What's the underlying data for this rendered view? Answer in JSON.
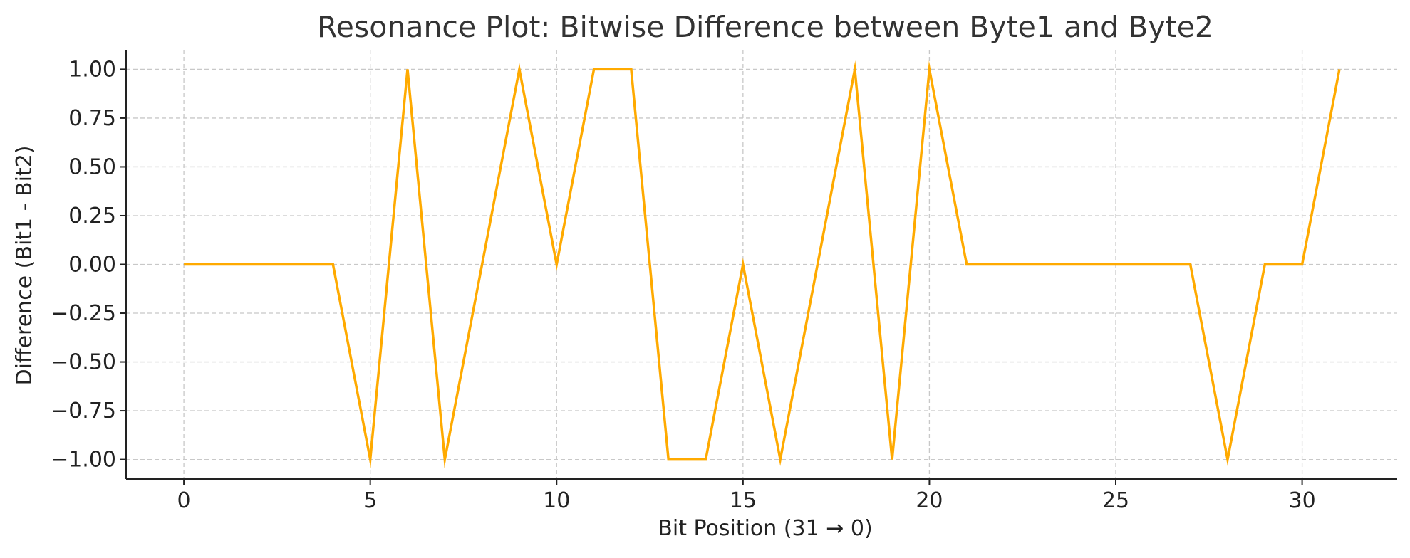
{
  "chart_data": {
    "type": "line",
    "title": "Resonance Plot: Bitwise Difference between Byte1 and Byte2",
    "xlabel": "Bit Position (31 → 0)",
    "ylabel": "Difference (Bit1 - Bit2)",
    "xlim": [
      -1.55,
      32.55
    ],
    "ylim": [
      -1.1,
      1.1
    ],
    "x_ticks": [
      0,
      5,
      10,
      15,
      20,
      25,
      30
    ],
    "y_ticks": [
      -1.0,
      -0.75,
      -0.5,
      -0.25,
      0.0,
      0.25,
      0.5,
      0.75,
      1.0
    ],
    "x_tick_labels": [
      "0",
      "5",
      "10",
      "15",
      "20",
      "25",
      "30"
    ],
    "y_tick_labels": [
      "−1.00",
      "−0.75",
      "−0.50",
      "−0.25",
      "0.00",
      "0.25",
      "0.50",
      "0.75",
      "1.00"
    ],
    "grid": true,
    "line_color": "#FFAA00",
    "series": [
      {
        "x": [
          0,
          1,
          2,
          3,
          4,
          5,
          6,
          7,
          8,
          9,
          10,
          11,
          12,
          13,
          14,
          15,
          16,
          17,
          18,
          19,
          20,
          21,
          22,
          23,
          24,
          25,
          26,
          27,
          28,
          29,
          30,
          31
        ],
        "values": [
          0,
          0,
          0,
          0,
          0,
          -1,
          1,
          -1,
          0,
          1,
          0,
          1,
          1,
          -1,
          -1,
          0,
          -1,
          0,
          1,
          -1,
          1,
          0,
          0,
          0,
          0,
          0,
          0,
          0,
          -1,
          0,
          0,
          1
        ]
      }
    ]
  }
}
